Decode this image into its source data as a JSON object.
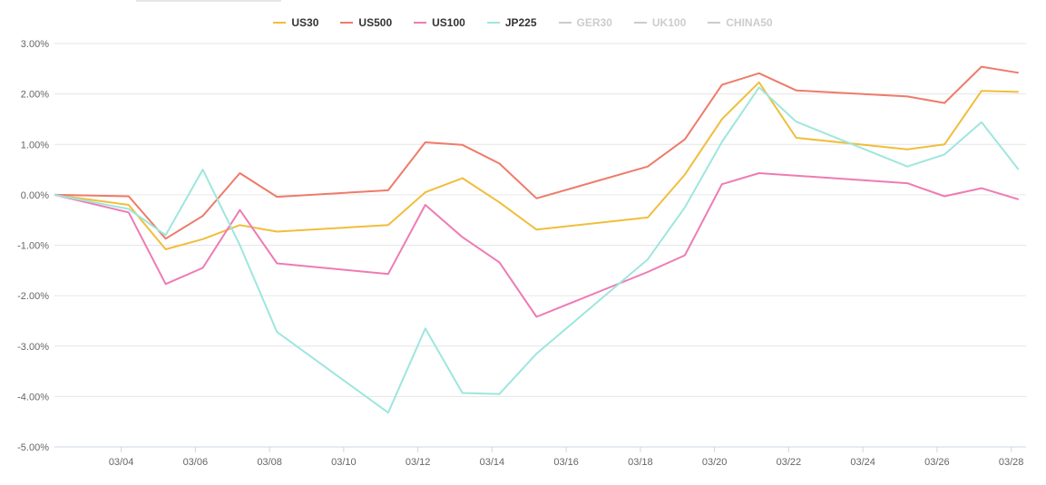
{
  "chart_data": {
    "type": "line",
    "title": "",
    "xlabel": "",
    "ylabel": "",
    "ylim": [
      -5,
      3
    ],
    "y_ticks": [
      "3.00%",
      "2.00%",
      "1.00%",
      "0.00%",
      "-1.00%",
      "-2.00%",
      "-3.00%",
      "-4.00%",
      "-5.00%"
    ],
    "x_tick_labels": [
      "03/04",
      "03/06",
      "03/08",
      "03/10",
      "03/12",
      "03/14",
      "03/16",
      "03/18",
      "03/20",
      "03/22",
      "03/24",
      "03/26",
      "03/28"
    ],
    "x_tick_days": [
      4,
      6,
      8,
      10,
      12,
      14,
      16,
      18,
      20,
      22,
      24,
      26,
      28
    ],
    "x_range_days": [
      2.2,
      28.4
    ],
    "grid": true,
    "legend_position": "top-center",
    "series": [
      {
        "name": "US30",
        "color": "#f0be3c",
        "visible": true,
        "points": [
          [
            2.2,
            0
          ],
          [
            4.2,
            -0.2
          ],
          [
            5.2,
            -1.08
          ],
          [
            6.2,
            -0.88
          ],
          [
            7.2,
            -0.6
          ],
          [
            8.2,
            -0.73
          ],
          [
            11.2,
            -0.6
          ],
          [
            12.2,
            0.05
          ],
          [
            13.2,
            0.33
          ],
          [
            14.2,
            -0.15
          ],
          [
            15.2,
            -0.69
          ],
          [
            18.2,
            -0.45
          ],
          [
            19.2,
            0.4
          ],
          [
            20.2,
            1.5
          ],
          [
            21.2,
            2.23
          ],
          [
            22.2,
            1.13
          ],
          [
            25.2,
            0.9
          ],
          [
            26.2,
            1.0
          ],
          [
            27.2,
            2.06
          ],
          [
            28.2,
            2.04
          ]
        ]
      },
      {
        "name": "US500",
        "color": "#ee7b6a",
        "visible": true,
        "points": [
          [
            2.2,
            0
          ],
          [
            4.2,
            -0.03
          ],
          [
            5.2,
            -0.87
          ],
          [
            6.2,
            -0.42
          ],
          [
            7.2,
            0.43
          ],
          [
            8.2,
            -0.04
          ],
          [
            11.2,
            0.09
          ],
          [
            12.2,
            1.04
          ],
          [
            13.2,
            0.99
          ],
          [
            14.2,
            0.62
          ],
          [
            15.2,
            -0.07
          ],
          [
            18.2,
            0.56
          ],
          [
            19.2,
            1.1
          ],
          [
            20.2,
            2.18
          ],
          [
            21.2,
            2.41
          ],
          [
            22.2,
            2.07
          ],
          [
            25.2,
            1.95
          ],
          [
            26.2,
            1.82
          ],
          [
            27.2,
            2.54
          ],
          [
            28.2,
            2.42
          ]
        ]
      },
      {
        "name": "US100",
        "color": "#ee7bb4",
        "visible": true,
        "points": [
          [
            2.2,
            0
          ],
          [
            4.2,
            -0.35
          ],
          [
            5.2,
            -1.77
          ],
          [
            6.2,
            -1.45
          ],
          [
            7.2,
            -0.3
          ],
          [
            8.2,
            -1.36
          ],
          [
            11.2,
            -1.57
          ],
          [
            12.2,
            -0.2
          ],
          [
            13.2,
            -0.84
          ],
          [
            14.2,
            -1.34
          ],
          [
            15.2,
            -2.42
          ],
          [
            18.2,
            -1.53
          ],
          [
            19.2,
            -1.2
          ],
          [
            20.2,
            0.21
          ],
          [
            21.2,
            0.43
          ],
          [
            25.2,
            0.23
          ],
          [
            26.2,
            -0.03
          ],
          [
            27.2,
            0.13
          ],
          [
            28.2,
            -0.09
          ]
        ]
      },
      {
        "name": "JP225",
        "color": "#9ee6de",
        "visible": true,
        "points": [
          [
            2.2,
            0
          ],
          [
            4.2,
            -0.28
          ],
          [
            5.2,
            -0.8
          ],
          [
            6.2,
            0.5
          ],
          [
            7.2,
            -1.0
          ],
          [
            8.2,
            -2.72
          ],
          [
            11.2,
            -4.32
          ],
          [
            12.2,
            -2.65
          ],
          [
            13.2,
            -3.93
          ],
          [
            14.2,
            -3.95
          ],
          [
            15.2,
            -3.15
          ],
          [
            18.2,
            -1.28
          ],
          [
            19.2,
            -0.25
          ],
          [
            20.2,
            1.05
          ],
          [
            21.2,
            2.13
          ],
          [
            22.2,
            1.45
          ],
          [
            25.2,
            0.56
          ],
          [
            26.2,
            0.8
          ],
          [
            27.2,
            1.44
          ],
          [
            28.2,
            0.5
          ]
        ]
      },
      {
        "name": "GER30",
        "color": "#cccccc",
        "visible": false,
        "points": []
      },
      {
        "name": "UK100",
        "color": "#cccccc",
        "visible": false,
        "points": []
      },
      {
        "name": "CHINA50",
        "color": "#cccccc",
        "visible": false,
        "points": []
      }
    ]
  }
}
